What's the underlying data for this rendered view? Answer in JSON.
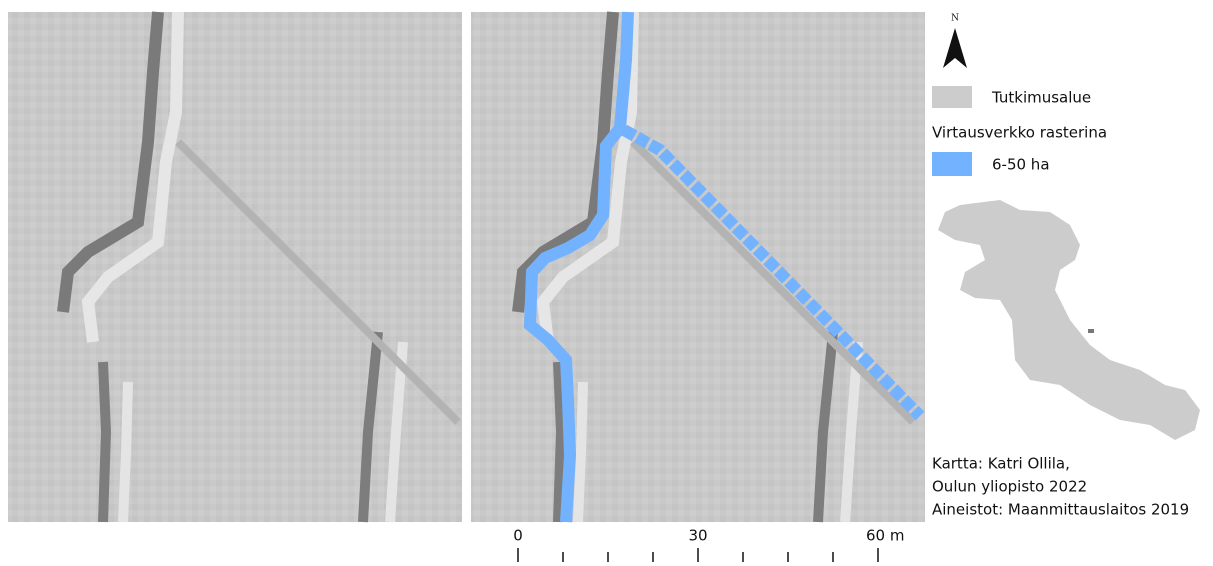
{
  "north_arrow": {
    "label": "N"
  },
  "legend": {
    "study_area": "Tutkimusalue",
    "network_title": "Virtausverkko rasterina",
    "network_class": "6-50 ha"
  },
  "scale_bar": {
    "labels": [
      "0",
      "30",
      "60 m"
    ]
  },
  "credits": [
    "Kartta: Katri Ollila,",
    "Oulun yliopisto 2022",
    "Aineistot: Maanmittauslaitos 2019"
  ]
}
